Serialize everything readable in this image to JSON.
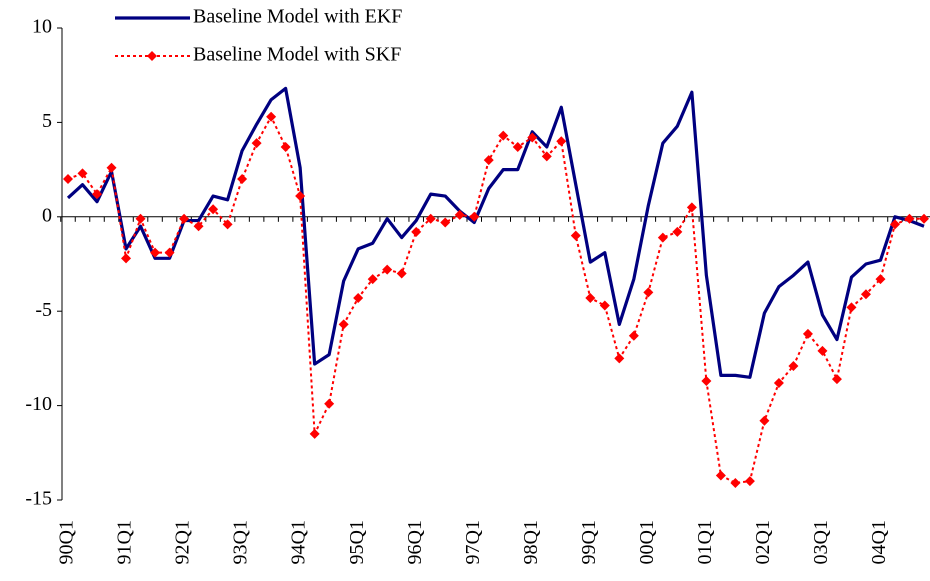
{
  "chart_data": {
    "type": "line",
    "categories": [
      "90Q1",
      null,
      null,
      null,
      "91Q1",
      null,
      null,
      null,
      "92Q1",
      null,
      null,
      null,
      "93Q1",
      null,
      null,
      null,
      "94Q1",
      null,
      null,
      null,
      "95Q1",
      null,
      null,
      null,
      "96Q1",
      null,
      null,
      null,
      "97Q1",
      null,
      null,
      null,
      "98Q1",
      null,
      null,
      null,
      "99Q1",
      null,
      null,
      null,
      "00Q1",
      null,
      null,
      null,
      "01Q1",
      null,
      null,
      null,
      "02Q1",
      null,
      null,
      null,
      "03Q1",
      null,
      null,
      null,
      "04Q1",
      null,
      null,
      null
    ],
    "series": [
      {
        "name": "Baseline Model with EKF",
        "color": "#000080",
        "style": "solid",
        "values": [
          1.0,
          1.7,
          0.8,
          2.4,
          -1.7,
          -0.5,
          -2.2,
          -2.2,
          -0.2,
          -0.2,
          1.1,
          0.9,
          3.5,
          4.9,
          6.2,
          6.8,
          2.6,
          -7.8,
          -7.3,
          -3.4,
          -1.7,
          -1.4,
          -0.1,
          -1.1,
          -0.2,
          1.2,
          1.1,
          0.3,
          -0.3,
          1.5,
          2.5,
          2.5,
          4.5,
          3.7,
          5.8,
          1.7,
          -2.4,
          -1.9,
          -5.7,
          -3.3,
          0.6,
          3.9,
          4.8,
          6.6,
          -3.1,
          -8.4,
          -8.4,
          -8.5,
          -5.1,
          -3.7,
          -3.1,
          -2.4,
          -5.2,
          -6.5,
          -3.2,
          -2.5,
          -2.3,
          0.0,
          -0.2,
          -0.5
        ]
      },
      {
        "name": "Baseline Model with SKF",
        "color": "#ff0000",
        "style": "dotted-diamond",
        "values": [
          2.0,
          2.3,
          1.2,
          2.6,
          -2.2,
          -0.1,
          -1.9,
          -1.9,
          -0.1,
          -0.5,
          0.4,
          -0.4,
          2.0,
          3.9,
          5.3,
          3.7,
          1.1,
          -11.5,
          -9.9,
          -5.7,
          -4.3,
          -3.3,
          -2.8,
          -3.0,
          -0.8,
          -0.1,
          -0.3,
          0.1,
          0.0,
          3.0,
          4.3,
          3.7,
          4.2,
          3.2,
          4.0,
          -1.0,
          -4.3,
          -4.7,
          -7.5,
          -6.3,
          -4.0,
          -1.1,
          -0.8,
          0.5,
          -8.7,
          -13.7,
          -14.1,
          -14.0,
          -10.8,
          -8.8,
          -7.9,
          -6.2,
          -7.1,
          -8.6,
          -4.8,
          -4.1,
          -3.3,
          -0.4,
          -0.1,
          -0.1
        ]
      }
    ],
    "ylim": [
      -15,
      10
    ],
    "yticks": [
      -15,
      -10,
      -5,
      0,
      5,
      10
    ],
    "grid": false,
    "legend": "top"
  }
}
